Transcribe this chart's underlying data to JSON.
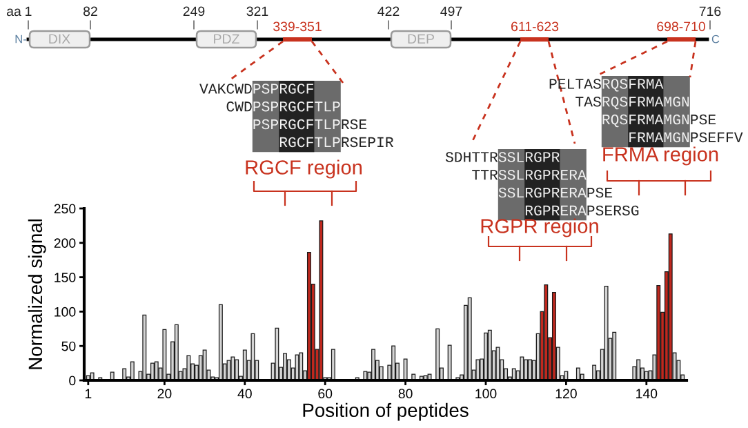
{
  "chart_data": [
    {
      "type": "other",
      "annotations": [
        "aa",
        "1",
        "82",
        "249",
        "321",
        "422",
        "497",
        "716",
        "N-",
        "DIX",
        "PDZ",
        "DEP",
        "339-351",
        "611-623",
        "698-710",
        "C",
        "VAKCWDPSPRGCF",
        "CWDPSPRGCFTLP",
        "PSPRGCFTLPRSE",
        "RGCFTLPRSEPIR",
        "RGCF region",
        "SDHTTRSSLRGPR",
        "TTRSSLRGPRERA",
        "SSLRGPRERAPSE",
        "RGPRERAPSERSG",
        "RGPR region",
        "PELTASRQSFRMA",
        "TASRQSFRMAMGN",
        "RQSFRMAMGNPSE",
        "FRMAMGNPSEFFV",
        "FRMA region"
      ]
    },
    {
      "type": "bar",
      "xlabel": "Position of peptides",
      "ylabel": "Normalized signal",
      "xlim": [
        0,
        150
      ],
      "xticks": [
        1,
        20,
        40,
        60,
        80,
        100,
        120,
        140
      ],
      "ylim": [
        0,
        250
      ],
      "yticks": [
        0,
        50,
        100,
        150,
        200,
        250
      ],
      "grid": false,
      "x": [
        1,
        2,
        3,
        4,
        5,
        6,
        7,
        8,
        9,
        10,
        11,
        12,
        13,
        14,
        15,
        16,
        17,
        18,
        19,
        20,
        21,
        22,
        23,
        24,
        25,
        26,
        27,
        28,
        29,
        30,
        31,
        32,
        33,
        34,
        35,
        36,
        37,
        38,
        39,
        40,
        41,
        42,
        43,
        44,
        45,
        46,
        47,
        48,
        49,
        50,
        51,
        52,
        53,
        54,
        55,
        56,
        57,
        58,
        59,
        60,
        61,
        62,
        63,
        64,
        65,
        66,
        67,
        68,
        69,
        70,
        71,
        72,
        73,
        74,
        75,
        76,
        77,
        78,
        79,
        80,
        81,
        82,
        83,
        84,
        85,
        86,
        87,
        88,
        89,
        90,
        91,
        92,
        93,
        94,
        95,
        96,
        97,
        98,
        99,
        100,
        101,
        102,
        103,
        104,
        105,
        106,
        107,
        108,
        109,
        110,
        111,
        112,
        113,
        114,
        115,
        116,
        117,
        118,
        119,
        120,
        121,
        122,
        123,
        124,
        125,
        126,
        127,
        128,
        129,
        130,
        131,
        132,
        133,
        134,
        135,
        136,
        137,
        138,
        139,
        140,
        141,
        142,
        143,
        144,
        145,
        146,
        147,
        148,
        149
      ],
      "values": [
        7,
        11,
        0,
        4,
        0,
        0,
        12,
        0,
        0,
        17,
        5,
        27,
        0,
        13,
        95,
        9,
        25,
        27,
        18,
        74,
        9,
        56,
        81,
        13,
        17,
        36,
        24,
        22,
        36,
        44,
        15,
        5,
        4,
        110,
        24,
        29,
        34,
        30,
        6,
        44,
        29,
        68,
        29,
        0,
        0,
        0,
        25,
        76,
        19,
        39,
        30,
        18,
        37,
        40,
        14,
        186,
        140,
        45,
        232,
        4,
        4,
        45,
        0,
        0,
        0,
        0,
        0,
        4,
        0,
        13,
        12,
        45,
        29,
        20,
        0,
        22,
        50,
        25,
        0,
        31,
        0,
        9,
        0,
        6,
        7,
        9,
        0,
        75,
        18,
        0,
        51,
        0,
        4,
        8,
        109,
        120,
        15,
        30,
        31,
        69,
        73,
        43,
        48,
        30,
        17,
        5,
        17,
        14,
        34,
        30,
        30,
        29,
        68,
        100,
        139,
        62,
        128,
        48,
        7,
        13,
        0,
        0,
        18,
        9,
        0,
        0,
        22,
        14,
        45,
        137,
        61,
        70,
        0,
        0,
        0,
        0,
        20,
        30,
        18,
        13,
        14,
        37,
        138,
        99,
        158,
        213,
        40,
        29,
        8
      ],
      "colors": [
        "#d4d4d4",
        "#d4d4d4",
        "#d4d4d4",
        "#d4d4d4",
        "#d4d4d4",
        "#d4d4d4",
        "#d4d4d4",
        "#d4d4d4",
        "#d4d4d4",
        "#d4d4d4",
        "#d4d4d4",
        "#d4d4d4",
        "#d4d4d4",
        "#d4d4d4",
        "#d4d4d4",
        "#d4d4d4",
        "#d4d4d4",
        "#d4d4d4",
        "#d4d4d4",
        "#d4d4d4",
        "#d4d4d4",
        "#d4d4d4",
        "#d4d4d4",
        "#d4d4d4",
        "#d4d4d4",
        "#d4d4d4",
        "#d4d4d4",
        "#d4d4d4",
        "#d4d4d4",
        "#d4d4d4",
        "#d4d4d4",
        "#d4d4d4",
        "#d4d4d4",
        "#d4d4d4",
        "#d4d4d4",
        "#d4d4d4",
        "#d4d4d4",
        "#d4d4d4",
        "#d4d4d4",
        "#d4d4d4",
        "#d4d4d4",
        "#d4d4d4",
        "#d4d4d4",
        "#d4d4d4",
        "#d4d4d4",
        "#d4d4d4",
        "#d4d4d4",
        "#d4d4d4",
        "#d4d4d4",
        "#d4d4d4",
        "#d4d4d4",
        "#d4d4d4",
        "#d4d4d4",
        "#d4d4d4",
        "#d4d4d4",
        "#c0281e",
        "#c0281e",
        "#c0281e",
        "#c0281e",
        "#d4d4d4",
        "#d4d4d4",
        "#d4d4d4",
        "#d4d4d4",
        "#d4d4d4",
        "#d4d4d4",
        "#d4d4d4",
        "#d4d4d4",
        "#d4d4d4",
        "#d4d4d4",
        "#d4d4d4",
        "#d4d4d4",
        "#d4d4d4",
        "#d4d4d4",
        "#d4d4d4",
        "#d4d4d4",
        "#d4d4d4",
        "#d4d4d4",
        "#d4d4d4",
        "#d4d4d4",
        "#d4d4d4",
        "#d4d4d4",
        "#d4d4d4",
        "#d4d4d4",
        "#d4d4d4",
        "#d4d4d4",
        "#d4d4d4",
        "#d4d4d4",
        "#d4d4d4",
        "#d4d4d4",
        "#d4d4d4",
        "#d4d4d4",
        "#d4d4d4",
        "#d4d4d4",
        "#d4d4d4",
        "#d4d4d4",
        "#d4d4d4",
        "#d4d4d4",
        "#d4d4d4",
        "#d4d4d4",
        "#d4d4d4",
        "#d4d4d4",
        "#d4d4d4",
        "#d4d4d4",
        "#d4d4d4",
        "#d4d4d4",
        "#d4d4d4",
        "#d4d4d4",
        "#d4d4d4",
        "#d4d4d4",
        "#d4d4d4",
        "#d4d4d4",
        "#d4d4d4",
        "#d4d4d4",
        "#c0281e",
        "#c0281e",
        "#c0281e",
        "#c0281e",
        "#d4d4d4",
        "#d4d4d4",
        "#d4d4d4",
        "#d4d4d4",
        "#d4d4d4",
        "#d4d4d4",
        "#d4d4d4",
        "#d4d4d4",
        "#d4d4d4",
        "#d4d4d4",
        "#d4d4d4",
        "#d4d4d4",
        "#d4d4d4",
        "#d4d4d4",
        "#d4d4d4",
        "#d4d4d4",
        "#d4d4d4",
        "#d4d4d4",
        "#d4d4d4",
        "#d4d4d4",
        "#d4d4d4",
        "#d4d4d4",
        "#d4d4d4",
        "#d4d4d4",
        "#d4d4d4",
        "#c0281e",
        "#c0281e",
        "#c0281e",
        "#c0281e",
        "#d4d4d4",
        "#d4d4d4",
        "#d4d4d4"
      ]
    }
  ]
}
